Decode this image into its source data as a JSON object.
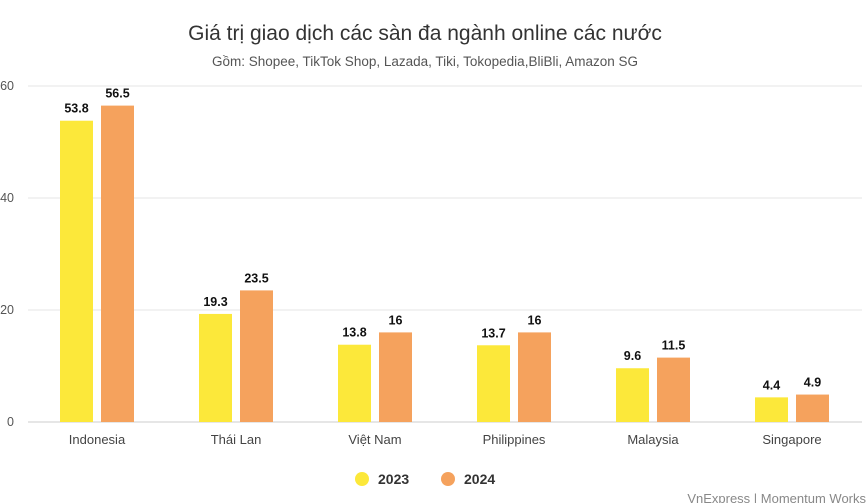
{
  "chart_data": {
    "type": "bar",
    "title": "Giá trị giao dịch các sàn đa ngành online các nước",
    "subtitle": "Gồm: Shopee, TikTok Shop, Lazada, Tiki, Tokopedia,BliBli, Amazon SG",
    "categories": [
      "Indonesia",
      "Thái Lan",
      "Việt Nam",
      "Philippines",
      "Malaysia",
      "Singapore"
    ],
    "series": [
      {
        "name": "2023",
        "color": "#fce83a",
        "values": [
          53.8,
          19.3,
          13.8,
          13.7,
          9.6,
          4.4
        ],
        "labels": [
          "53.8",
          "19.3",
          "13.8",
          "13.7",
          "9.6",
          "4.4"
        ]
      },
      {
        "name": "2024",
        "color": "#f5a25d",
        "values": [
          56.5,
          23.5,
          16,
          16,
          11.5,
          4.9
        ],
        "labels": [
          "56.5",
          "23.5",
          "16",
          "16",
          "11.5",
          "4.9"
        ]
      }
    ],
    "yticks": [
      0,
      20,
      40,
      60
    ],
    "ytick_labels": [
      "0",
      "20",
      "40",
      "60"
    ],
    "ylim": [
      0,
      60
    ],
    "grid": true,
    "legend_position": "bottom-center",
    "xlabel": "",
    "ylabel": ""
  },
  "source": "VnExpress | Momentum Works"
}
